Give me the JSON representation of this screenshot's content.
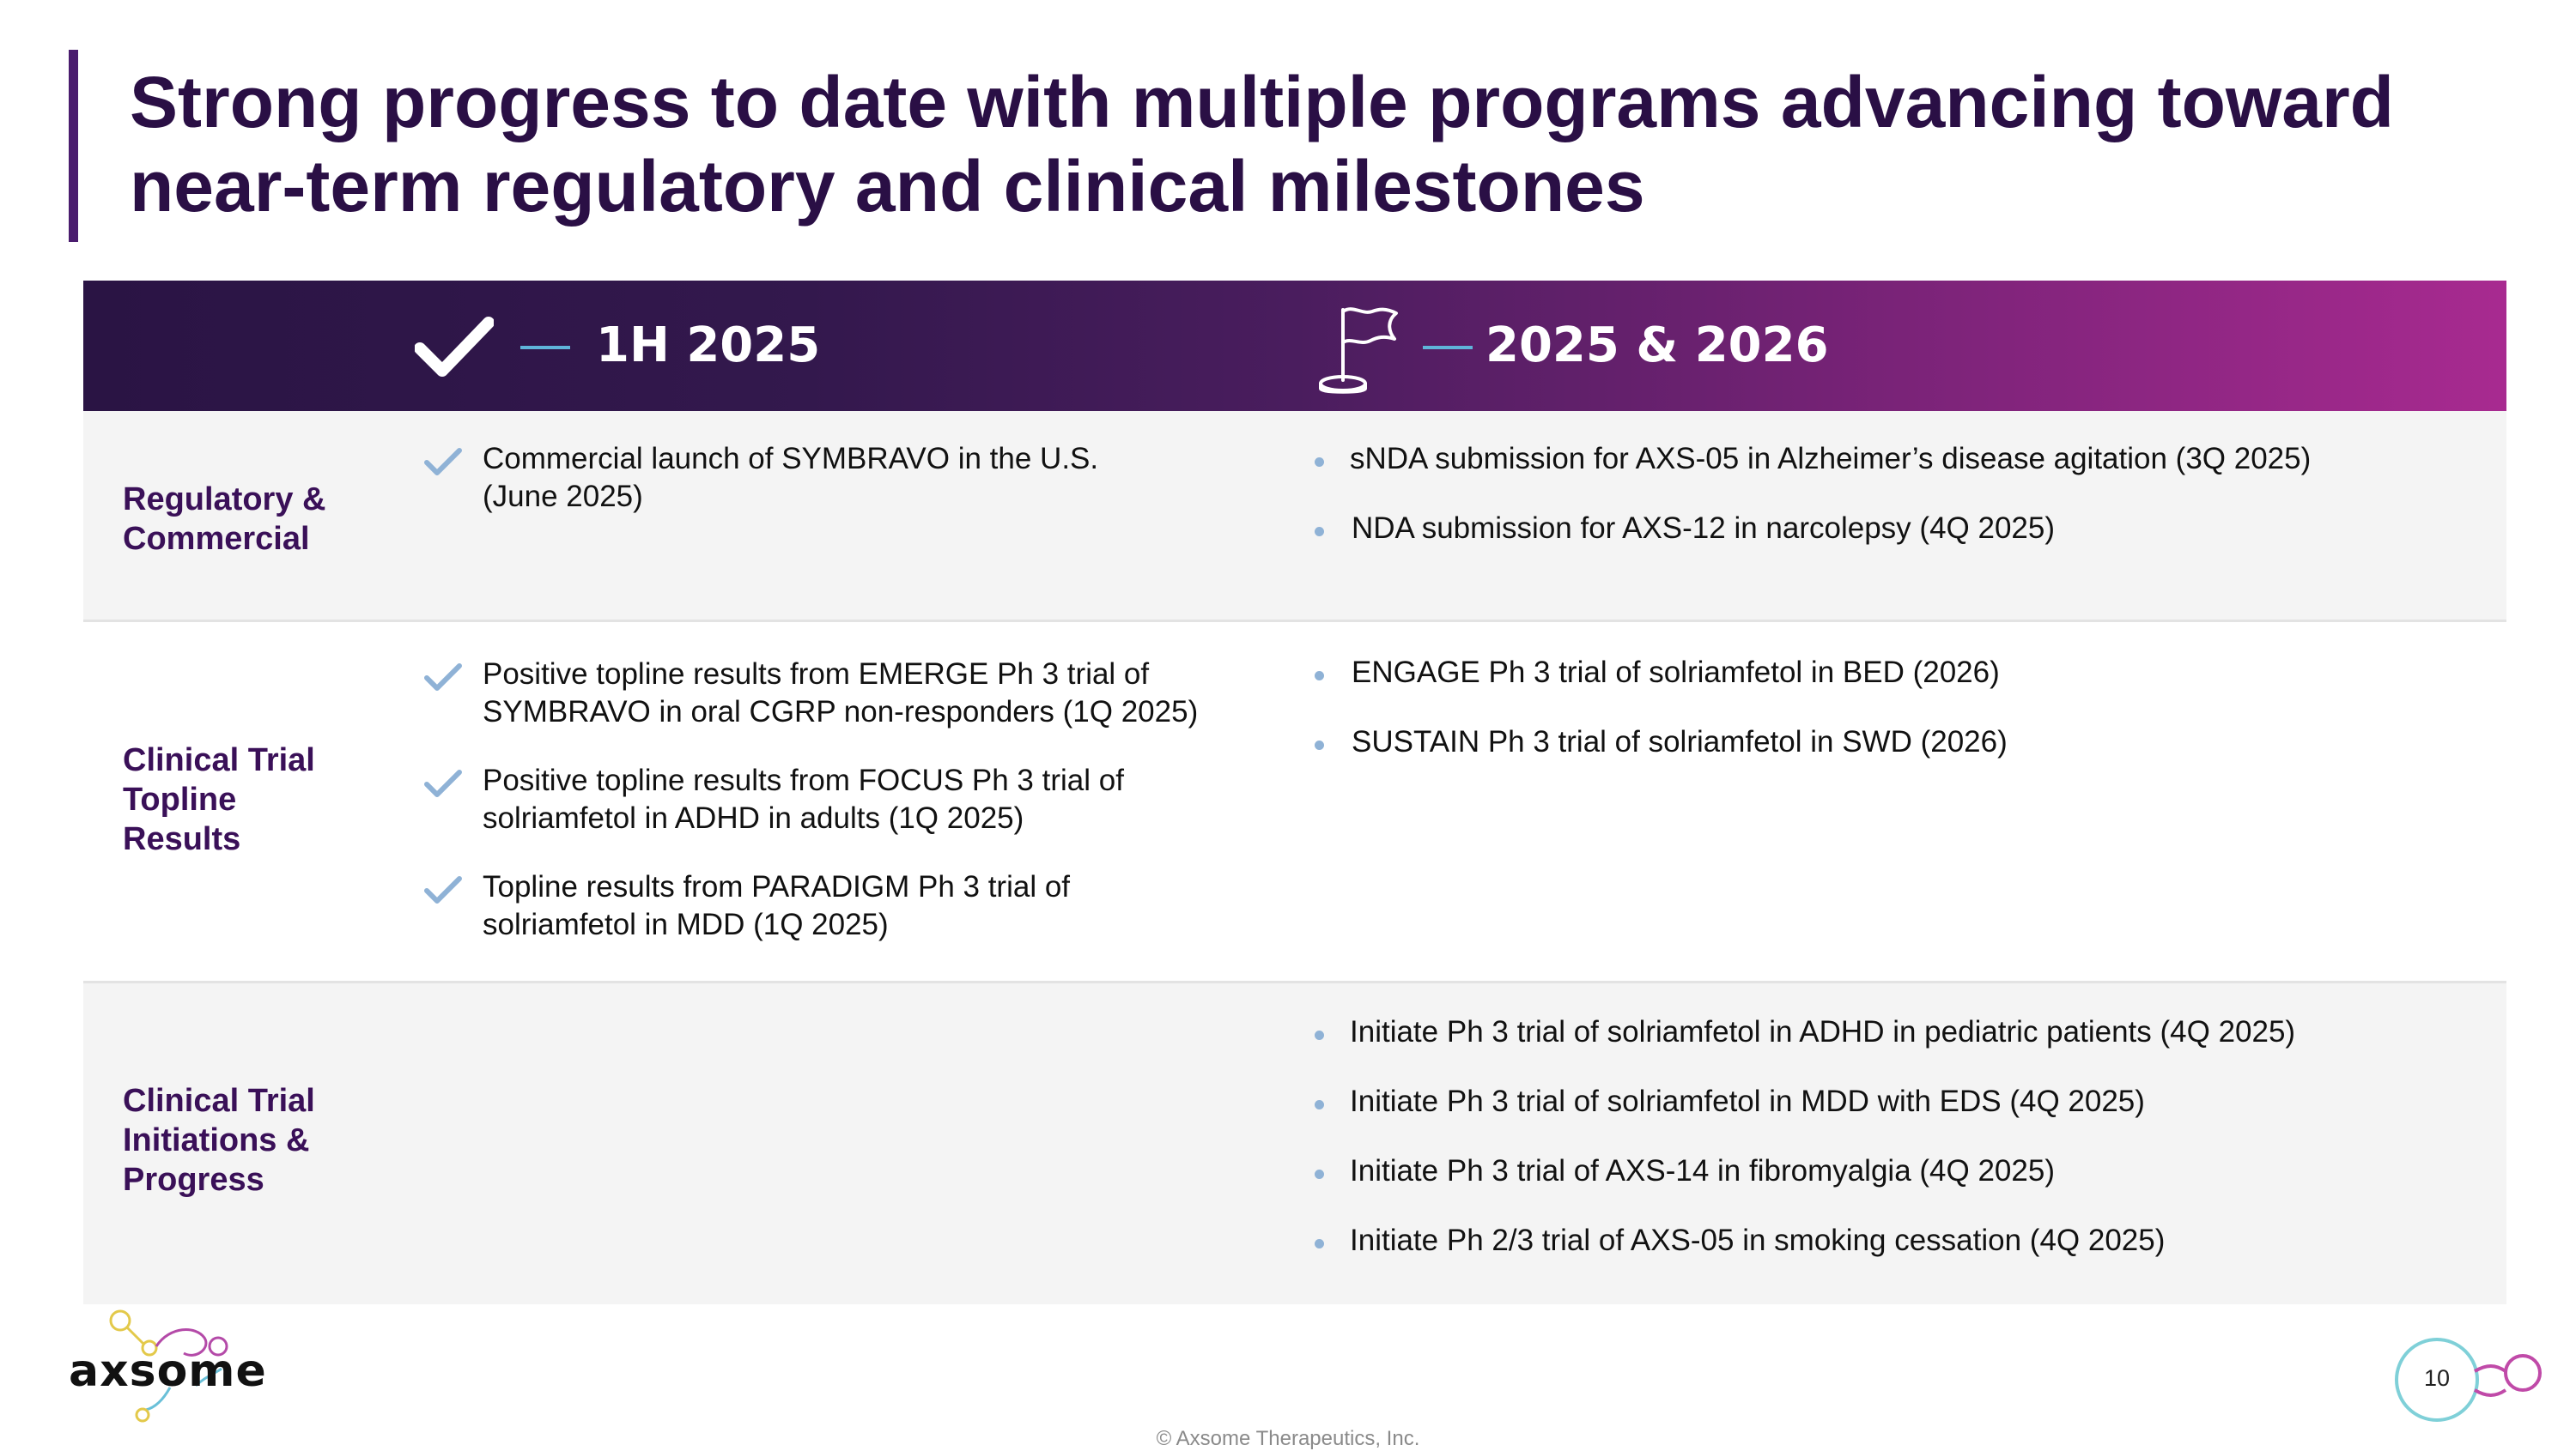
{
  "title": {
    "line1": "Strong progress to date with multiple programs advancing toward",
    "line2": "near-term regulatory and clinical milestones"
  },
  "header": {
    "col1_label": "1H 2025",
    "col1_icon": "checkmark-icon",
    "col2_label": "2025 & 2026",
    "col2_icon": "flag-icon"
  },
  "rows": [
    {
      "label_lines": [
        "Regulatory &",
        "Commercial"
      ],
      "completed": [
        {
          "lines": [
            "Commercial launch of SYMBRAVO in the U.S.",
            "(June 2025)"
          ]
        }
      ],
      "upcoming": [
        "sNDA submission for AXS-05 in Alzheimer’s disease agitation (3Q 2025)",
        "NDA submission for AXS-12 in narcolepsy (4Q 2025)"
      ]
    },
    {
      "label_lines": [
        "Clinical Trial",
        "Topline",
        "Results"
      ],
      "completed": [
        {
          "lines": [
            "Positive topline results from EMERGE Ph 3 trial of",
            "SYMBRAVO in oral CGRP non-responders (1Q 2025)"
          ]
        },
        {
          "lines": [
            "Positive topline results from FOCUS Ph 3 trial of",
            "solriamfetol in ADHD in adults (1Q 2025)"
          ]
        },
        {
          "lines": [
            "Topline results from PARADIGM Ph 3 trial of",
            "solriamfetol in MDD (1Q 2025)"
          ]
        }
      ],
      "upcoming": [
        "ENGAGE Ph 3 trial of solriamfetol in BED (2026)",
        "SUSTAIN Ph 3 trial of solriamfetol in SWD (2026)"
      ]
    },
    {
      "label_lines": [
        "Clinical Trial",
        "Initiations &",
        "Progress"
      ],
      "completed": [],
      "upcoming": [
        "Initiate Ph 3 trial of solriamfetol in ADHD in pediatric patients (4Q 2025)",
        "Initiate Ph 3 trial of solriamfetol in MDD with EDS (4Q 2025)",
        "Initiate Ph 3 trial of AXS-14 in fibromyalgia (4Q 2025)",
        "Initiate Ph 2/3 trial of AXS-05 in smoking cessation (4Q 2025)"
      ]
    }
  ],
  "footer": {
    "logo_text": "axsome",
    "copyright": "© Axsome Therapeutics, Inc.",
    "page_number": "10"
  },
  "colors": {
    "title": "#2a0f45",
    "row_label": "#3a1058",
    "header_start": "#2a1444",
    "header_end": "#a82a90",
    "check": "#8fb2d6",
    "bullet": "#8fb2d6",
    "accent_dash": "#5fb4d9"
  }
}
